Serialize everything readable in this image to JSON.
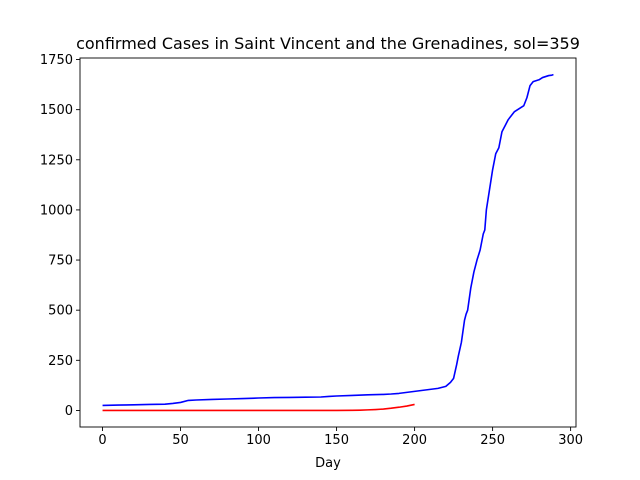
{
  "chart_data": {
    "type": "line",
    "title": "confirmed Cases in Saint Vincent and the Grenadines, sol=359",
    "xlabel": "Day",
    "ylabel": "",
    "xlim": [
      -14.45,
      303.45
    ],
    "ylim": [
      -82.6,
      1757.6
    ],
    "xticks": [
      0,
      50,
      100,
      150,
      200,
      250,
      300
    ],
    "yticks": [
      0,
      250,
      500,
      750,
      1000,
      1250,
      1500,
      1750
    ],
    "grid": false,
    "legend": "none",
    "series": [
      {
        "color": "#0000ff",
        "x": [
          0,
          10,
          20,
          30,
          40,
          45,
          50,
          55,
          60,
          70,
          80,
          90,
          100,
          110,
          120,
          130,
          140,
          145,
          150,
          160,
          170,
          180,
          185,
          190,
          195,
          200,
          205,
          210,
          215,
          220,
          223,
          225,
          227,
          228,
          230,
          232,
          233,
          234,
          236,
          238,
          240,
          242,
          244,
          245,
          246,
          248,
          250,
          252,
          254,
          256,
          258,
          260,
          262,
          264,
          266,
          268,
          270,
          272,
          274,
          276,
          278,
          280,
          282,
          284,
          286,
          288,
          289
        ],
        "y": [
          25,
          27,
          28,
          30,
          31,
          35,
          40,
          50,
          52,
          55,
          57,
          59,
          62,
          64,
          65,
          66,
          67,
          70,
          72,
          75,
          78,
          80,
          82,
          85,
          90,
          95,
          100,
          105,
          110,
          120,
          140,
          160,
          230,
          270,
          340,
          450,
          480,
          500,
          610,
          690,
          750,
          800,
          880,
          900,
          1000,
          1100,
          1200,
          1280,
          1310,
          1390,
          1420,
          1450,
          1470,
          1490,
          1500,
          1510,
          1520,
          1560,
          1620,
          1640,
          1645,
          1650,
          1660,
          1665,
          1670,
          1672,
          1675
        ]
      },
      {
        "color": "#ff0000",
        "x": [
          0,
          20,
          40,
          60,
          80,
          100,
          120,
          140,
          150,
          160,
          165,
          170,
          175,
          180,
          185,
          190,
          195,
          200
        ],
        "y": [
          0,
          0,
          0,
          0,
          0,
          0,
          0,
          0,
          0.2,
          0.8,
          1.5,
          2.8,
          4.5,
          7,
          11,
          16,
          22,
          30
        ]
      }
    ]
  }
}
